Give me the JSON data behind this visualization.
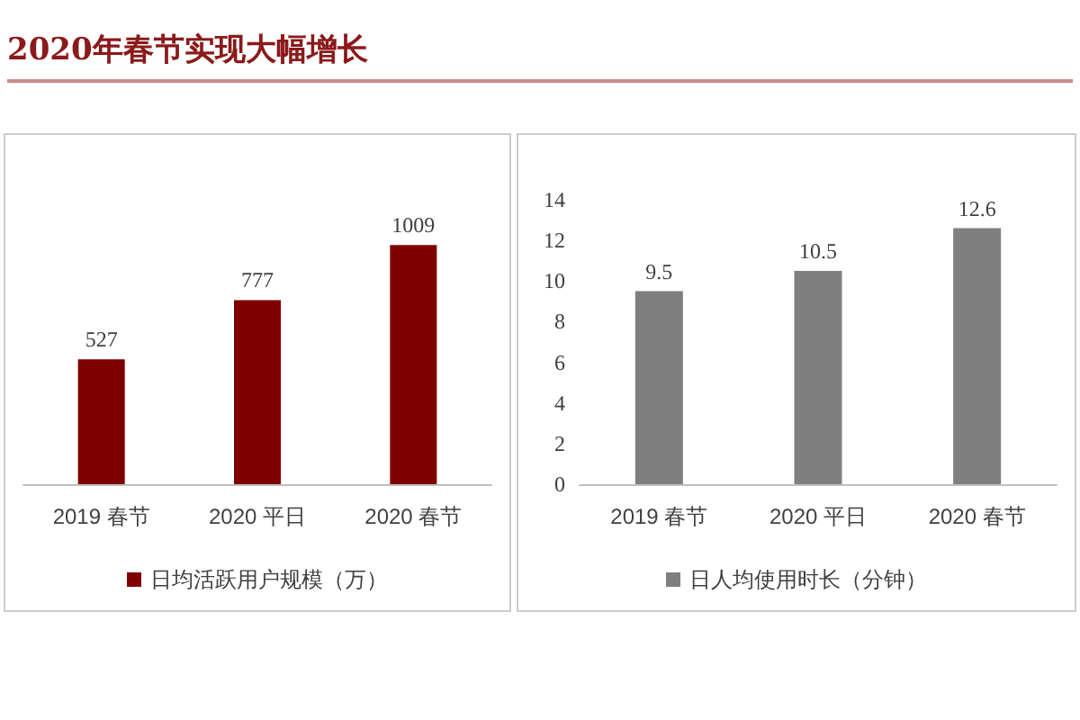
{
  "chart_data": [
    {
      "type": "bar",
      "title": "2020年春节实现大幅增长",
      "categories": [
        "2019 春节",
        "2020 平日",
        "2020 春节"
      ],
      "series": [
        {
          "name": "日均活跃用户规模（万）",
          "color": "#7f0000",
          "values": [
            527,
            777,
            1009
          ]
        }
      ],
      "data_labels": true,
      "legend": "bottom",
      "grid": false
    },
    {
      "type": "bar",
      "categories": [
        "2019 春节",
        "2020 平日",
        "2020 春节"
      ],
      "series": [
        {
          "name": "日人均使用时长（分钟）",
          "color": "#7f7f7f",
          "values": [
            9.5,
            10.5,
            12.6
          ]
        }
      ],
      "ylim": [
        0,
        14
      ],
      "yticks": [
        0,
        2,
        4,
        6,
        8,
        10,
        12,
        14
      ],
      "data_labels": true,
      "legend": "bottom",
      "grid": false
    }
  ]
}
